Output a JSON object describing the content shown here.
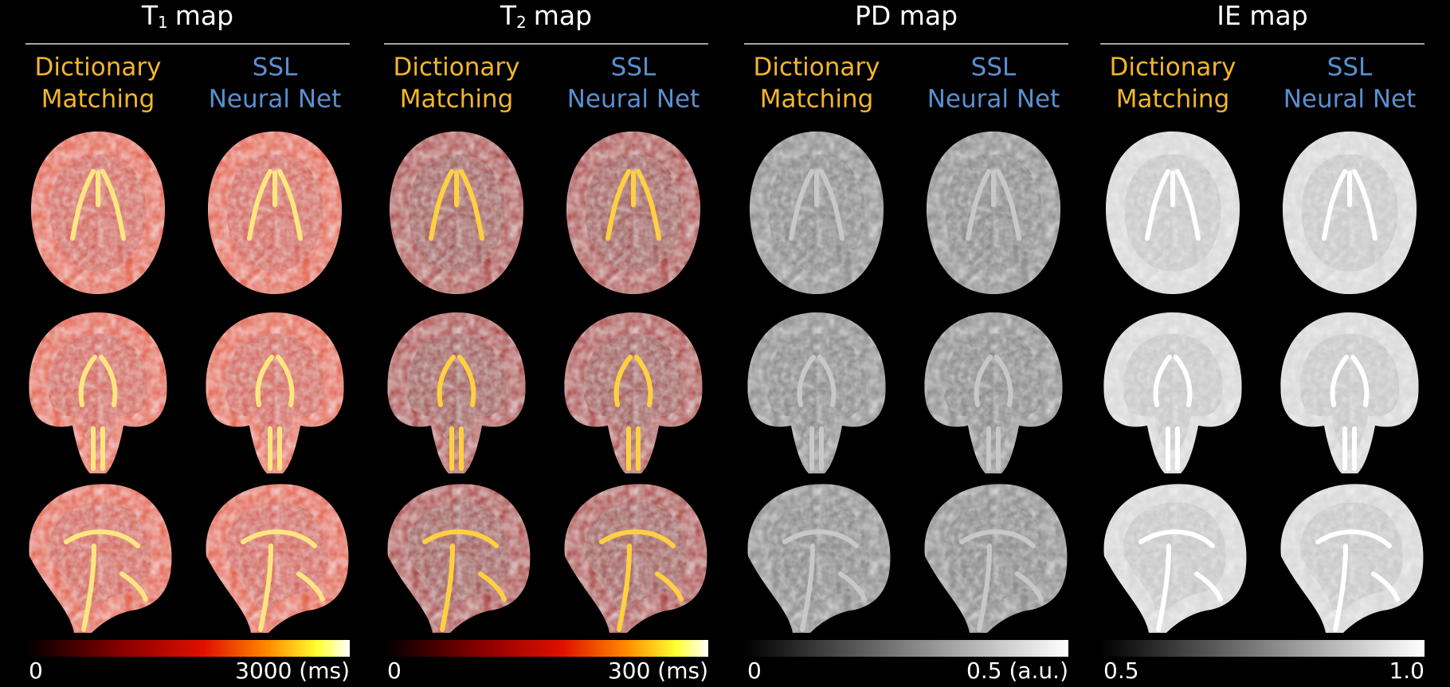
{
  "panels": [
    {
      "title": "T",
      "title_sub": "1",
      "title_tail": "map",
      "methods": [
        {
          "lines": [
            "Dictionary",
            "Matching"
          ]
        },
        {
          "lines": [
            "SSL",
            "Neural Net"
          ]
        }
      ],
      "colorbar": {
        "min_label": "0",
        "max_label": "3000 (ms)"
      }
    },
    {
      "title": "T",
      "title_sub": "2",
      "title_tail": "map",
      "methods": [
        {
          "lines": [
            "Dictionary",
            "Matching"
          ]
        },
        {
          "lines": [
            "SSL",
            "Neural Net"
          ]
        }
      ],
      "colorbar": {
        "min_label": "0",
        "max_label": "300 (ms)"
      }
    },
    {
      "title": "PD map",
      "methods": [
        {
          "lines": [
            "Dictionary",
            "Matching"
          ]
        },
        {
          "lines": [
            "SSL",
            "Neural Net"
          ]
        }
      ],
      "colorbar": {
        "min_label": "0",
        "max_label": "0.5 (a.u.)"
      }
    },
    {
      "title": "IE map",
      "methods": [
        {
          "lines": [
            "Dictionary",
            "Matching"
          ]
        },
        {
          "lines": [
            "SSL",
            "Neural Net"
          ]
        }
      ],
      "colorbar": {
        "min_label": "0.5",
        "max_label": "1.0"
      }
    }
  ]
}
